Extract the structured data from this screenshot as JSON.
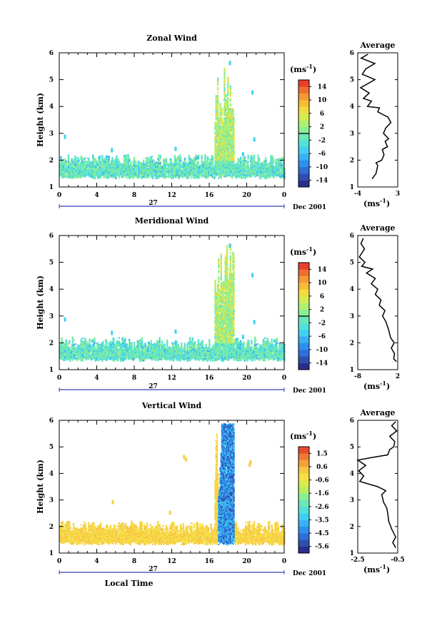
{
  "figure": {
    "xlabel": "Local Time",
    "date_label": "Dec 2001",
    "day_label": "27",
    "unit_label": "(ms",
    "unit_sup": "-1",
    "unit_close": ")"
  },
  "chart_data": [
    {
      "id": "zonal",
      "type": "heatmap",
      "title": "Zonal Wind",
      "xlabel": "",
      "ylabel": "Height (km)",
      "x_ticks": [
        "0",
        "4",
        "8",
        "12",
        "16",
        "20",
        "0"
      ],
      "xlim": [
        0,
        24
      ],
      "y_ticks": [
        "1",
        "2",
        "3",
        "4",
        "5",
        "6"
      ],
      "ylim": [
        1,
        6
      ],
      "colorbar": {
        "ticks": [
          "14",
          "10",
          "6",
          "2",
          "-2",
          "-6",
          "-10",
          "-14"
        ],
        "range": [
          -16,
          16
        ],
        "zero_line": 0
      },
      "profile": {
        "title": "Average",
        "xlabel": "(ms-1)",
        "x_ticks": [
          "-4",
          "3"
        ],
        "xlim": [
          -4,
          3
        ],
        "ylim": [
          1,
          6
        ],
        "y_ticks": [
          "1",
          "2",
          "3",
          "4",
          "5",
          "6"
        ],
        "points": [
          [
            -1.5,
            1.3
          ],
          [
            -0.8,
            1.5
          ],
          [
            -0.5,
            1.8
          ],
          [
            -0.8,
            1.9
          ],
          [
            0.2,
            2.0
          ],
          [
            0.6,
            2.2
          ],
          [
            0.3,
            2.4
          ],
          [
            1.2,
            2.5
          ],
          [
            0.8,
            2.7
          ],
          [
            1.4,
            2.8
          ],
          [
            0.5,
            3.0
          ],
          [
            0.9,
            3.2
          ],
          [
            1.8,
            3.4
          ],
          [
            1.3,
            3.6
          ],
          [
            0.4,
            3.7
          ],
          [
            -0.5,
            3.8
          ],
          [
            -0.2,
            3.95
          ],
          [
            -2.3,
            4.0
          ],
          [
            -1.6,
            4.2
          ],
          [
            -3.0,
            4.3
          ],
          [
            -2.0,
            4.5
          ],
          [
            -3.5,
            4.7
          ],
          [
            -1.0,
            5.0
          ],
          [
            -3.2,
            5.2
          ],
          [
            -2.6,
            5.4
          ],
          [
            -1.0,
            5.6
          ],
          [
            -3.4,
            5.8
          ],
          [
            -2.2,
            5.95
          ]
        ]
      }
    },
    {
      "id": "meridional",
      "type": "heatmap",
      "title": "Meridional Wind",
      "xlabel": "",
      "ylabel": "Height (km)",
      "x_ticks": [
        "0",
        "4",
        "8",
        "12",
        "16",
        "20",
        "0"
      ],
      "xlim": [
        0,
        24
      ],
      "y_ticks": [
        "1",
        "2",
        "3",
        "4",
        "5",
        "6"
      ],
      "ylim": [
        1,
        6
      ],
      "colorbar": {
        "ticks": [
          "14",
          "10",
          "6",
          "2",
          "-2",
          "-6",
          "-10",
          "-14"
        ],
        "range": [
          -16,
          16
        ],
        "zero_line": 0
      },
      "profile": {
        "title": "Average",
        "xlabel": "(ms-1)",
        "x_ticks": [
          "-8",
          "2"
        ],
        "xlim": [
          -8,
          2
        ],
        "ylim": [
          1,
          6
        ],
        "y_ticks": [
          "1",
          "2",
          "3",
          "4",
          "5",
          "6"
        ],
        "points": [
          [
            1.7,
            1.3
          ],
          [
            1.0,
            1.4
          ],
          [
            1.2,
            1.6
          ],
          [
            0.4,
            1.8
          ],
          [
            1.1,
            2.0
          ],
          [
            0.2,
            2.2
          ],
          [
            -0.3,
            2.5
          ],
          [
            -1.0,
            2.8
          ],
          [
            -1.8,
            3.0
          ],
          [
            -1.2,
            3.2
          ],
          [
            -2.6,
            3.4
          ],
          [
            -2.2,
            3.6
          ],
          [
            -3.6,
            3.8
          ],
          [
            -3.0,
            4.0
          ],
          [
            -4.6,
            4.2
          ],
          [
            -3.6,
            4.4
          ],
          [
            -5.8,
            4.6
          ],
          [
            -4.3,
            4.75
          ],
          [
            -7.0,
            4.85
          ],
          [
            -6.2,
            5.0
          ],
          [
            -7.6,
            5.2
          ],
          [
            -6.3,
            5.5
          ],
          [
            -7.2,
            5.7
          ],
          [
            -6.6,
            5.9
          ]
        ]
      }
    },
    {
      "id": "vertical",
      "type": "heatmap",
      "title": "Vertical Wind",
      "xlabel": "Local Time",
      "ylabel": "Height (km)",
      "x_ticks": [
        "0",
        "4",
        "8",
        "12",
        "16",
        "20",
        "0"
      ],
      "xlim": [
        0,
        24
      ],
      "y_ticks": [
        "1",
        "2",
        "3",
        "4",
        "5",
        "6"
      ],
      "ylim": [
        1,
        6
      ],
      "colorbar": {
        "ticks": [
          "1.5",
          "0.6",
          "-0.6",
          "-1.6",
          "-2.6",
          "-3.5",
          "-4.5",
          "-5.6"
        ],
        "range": [
          -6,
          2
        ],
        "zero_line": null
      },
      "profile": {
        "title": "Average",
        "xlabel": "(ms-1)",
        "x_ticks": [
          "-2.5",
          "-0.5"
        ],
        "xlim": [
          -2.5,
          -0.5
        ],
        "ylim": [
          1,
          6
        ],
        "y_ticks": [
          "1",
          "2",
          "3",
          "4",
          "5",
          "6"
        ],
        "points": [
          [
            -0.6,
            1.2
          ],
          [
            -0.75,
            1.4
          ],
          [
            -0.6,
            1.6
          ],
          [
            -0.8,
            1.9
          ],
          [
            -0.95,
            2.2
          ],
          [
            -1.0,
            2.5
          ],
          [
            -1.05,
            2.7
          ],
          [
            -1.2,
            2.9
          ],
          [
            -1.3,
            3.2
          ],
          [
            -1.1,
            3.35
          ],
          [
            -1.5,
            3.5
          ],
          [
            -2.4,
            3.7
          ],
          [
            -2.2,
            3.9
          ],
          [
            -2.45,
            4.1
          ],
          [
            -2.1,
            4.3
          ],
          [
            -2.5,
            4.5
          ],
          [
            -1.8,
            4.6
          ],
          [
            -1.0,
            4.7
          ],
          [
            -0.9,
            4.9
          ],
          [
            -0.7,
            5.0
          ],
          [
            -0.65,
            5.2
          ],
          [
            -0.9,
            5.4
          ],
          [
            -0.55,
            5.6
          ],
          [
            -0.8,
            5.8
          ],
          [
            -0.6,
            5.95
          ]
        ]
      }
    }
  ]
}
